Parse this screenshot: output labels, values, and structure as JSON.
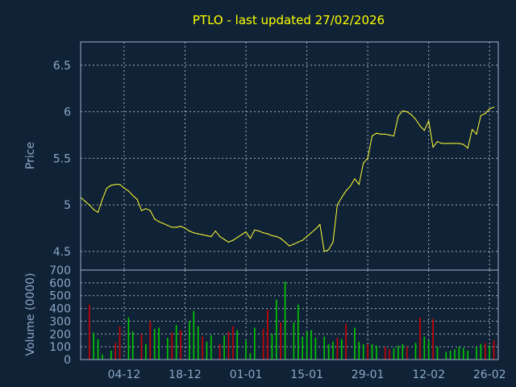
{
  "chart_data": {
    "type": "line",
    "title": "PTLO - last updated 27/02/2026",
    "price_panel": {
      "ylabel": "Price",
      "ylim": [
        4.3,
        6.75
      ],
      "yticks": [
        4.5,
        5,
        5.5,
        6,
        6.5
      ],
      "ytick_labels": [
        "4.5",
        "5",
        "5.5",
        "6",
        "6.5"
      ],
      "grid": true
    },
    "volume_panel": {
      "ylabel": "Volume (0000)",
      "ylim": [
        0,
        700
      ],
      "yticks": [
        0,
        100,
        200,
        300,
        400,
        500,
        600,
        700
      ],
      "ytick_labels": [
        "0",
        "100",
        "200",
        "300",
        "400",
        "500",
        "600",
        "700"
      ],
      "grid": true
    },
    "x_range": [
      "2025-11-24",
      "2026-02-28"
    ],
    "xticks": [
      "2025-12-04",
      "2025-12-18",
      "2026-01-01",
      "2026-01-15",
      "2026-01-29",
      "2026-02-12",
      "2026-02-26"
    ],
    "xtick_labels": [
      "04-12",
      "18-12",
      "01-01",
      "15-01",
      "29-01",
      "12-02",
      "26-02"
    ],
    "colors": {
      "price": "#ffff33",
      "volume_up": "#00cc00",
      "volume_down": "#cc0000"
    },
    "series": [
      {
        "kind": "price",
        "x": [
          "2025-11-24",
          "2025-11-25",
          "2025-11-26",
          "2025-11-27",
          "2025-11-28",
          "2025-11-29",
          "2025-11-30",
          "2025-12-01",
          "2025-12-02",
          "2025-12-03",
          "2025-12-04",
          "2025-12-05",
          "2025-12-06",
          "2025-12-07",
          "2025-12-08",
          "2025-12-09",
          "2025-12-10",
          "2025-12-11",
          "2025-12-12",
          "2025-12-13",
          "2025-12-14",
          "2025-12-15",
          "2025-12-16",
          "2025-12-17",
          "2025-12-18",
          "2025-12-19",
          "2025-12-20",
          "2025-12-21",
          "2025-12-22",
          "2025-12-23",
          "2025-12-24",
          "2025-12-25",
          "2025-12-26",
          "2025-12-27",
          "2025-12-28",
          "2025-12-29",
          "2025-12-30",
          "2025-12-31",
          "2026-01-01",
          "2026-01-02",
          "2026-01-03",
          "2026-01-04",
          "2026-01-05",
          "2026-01-06",
          "2026-01-07",
          "2026-01-08",
          "2026-01-09",
          "2026-01-10",
          "2026-01-11",
          "2026-01-12",
          "2026-01-13",
          "2026-01-14",
          "2026-01-15",
          "2026-01-16",
          "2026-01-17",
          "2026-01-18",
          "2026-01-19",
          "2026-01-20",
          "2026-01-21",
          "2026-01-22",
          "2026-01-23",
          "2026-01-24",
          "2026-01-25",
          "2026-01-26",
          "2026-01-27",
          "2026-01-28",
          "2026-01-29",
          "2026-01-30",
          "2026-01-31",
          "2026-02-01",
          "2026-02-02",
          "2026-02-03",
          "2026-02-04",
          "2026-02-05",
          "2026-02-06",
          "2026-02-07",
          "2026-02-08",
          "2026-02-09",
          "2026-02-10",
          "2026-02-11",
          "2026-02-12",
          "2026-02-13",
          "2026-02-14",
          "2026-02-15",
          "2026-02-16",
          "2026-02-17",
          "2026-02-18",
          "2026-02-19",
          "2026-02-20",
          "2026-02-21",
          "2026-02-22",
          "2026-02-23",
          "2026-02-24",
          "2026-02-25",
          "2026-02-26",
          "2026-02-27"
        ],
        "values": [
          5.08,
          5.04,
          5.0,
          4.95,
          4.92,
          5.06,
          5.18,
          5.21,
          5.22,
          5.22,
          5.18,
          5.15,
          5.1,
          5.06,
          4.94,
          4.96,
          4.94,
          4.85,
          4.82,
          4.8,
          4.78,
          4.76,
          4.76,
          4.77,
          4.75,
          4.72,
          4.7,
          4.69,
          4.68,
          4.67,
          4.66,
          4.72,
          4.66,
          4.63,
          4.6,
          4.62,
          4.65,
          4.68,
          4.71,
          4.64,
          4.73,
          4.72,
          4.7,
          4.69,
          4.67,
          4.66,
          4.64,
          4.6,
          4.56,
          4.58,
          4.6,
          4.62,
          4.66,
          4.7,
          4.74,
          4.79,
          4.5,
          4.52,
          4.6,
          5.0,
          5.08,
          5.15,
          5.2,
          5.28,
          5.22,
          5.45,
          5.5,
          5.74,
          5.77,
          5.76,
          5.76,
          5.75,
          5.74,
          5.95,
          6.01,
          6.0,
          5.97,
          5.92,
          5.85,
          5.8,
          5.9,
          5.62,
          5.68,
          5.66,
          5.66,
          5.66,
          5.66,
          5.66,
          5.65,
          5.61,
          5.81,
          5.76,
          5.96,
          5.98,
          6.03,
          6.05
        ]
      },
      {
        "kind": "volume",
        "x": [
          "2025-11-26",
          "2025-11-27",
          "2025-11-28",
          "2025-11-29",
          "2025-12-01",
          "2025-12-02",
          "2025-12-03",
          "2025-12-05",
          "2025-12-06",
          "2025-12-08",
          "2025-12-09",
          "2025-12-10",
          "2025-12-11",
          "2025-12-12",
          "2025-12-14",
          "2025-12-15",
          "2025-12-16",
          "2025-12-17",
          "2025-12-19",
          "2025-12-20",
          "2025-12-21",
          "2025-12-22",
          "2025-12-23",
          "2025-12-24",
          "2025-12-26",
          "2025-12-27",
          "2025-12-28",
          "2025-12-29",
          "2025-12-30",
          "2026-01-01",
          "2026-01-02",
          "2026-01-03",
          "2026-01-05",
          "2026-01-06",
          "2026-01-07",
          "2026-01-08",
          "2026-01-09",
          "2026-01-10",
          "2026-01-12",
          "2026-01-13",
          "2026-01-14",
          "2026-01-15",
          "2026-01-16",
          "2026-01-17",
          "2026-01-19",
          "2026-01-20",
          "2026-01-21",
          "2026-01-22",
          "2026-01-23",
          "2026-01-24",
          "2026-01-26",
          "2026-01-27",
          "2026-01-28",
          "2026-01-29",
          "2026-01-30",
          "2026-01-31",
          "2026-02-02",
          "2026-02-03",
          "2026-02-04",
          "2026-02-05",
          "2026-02-06",
          "2026-02-07",
          "2026-02-09",
          "2026-02-10",
          "2026-02-11",
          "2026-02-12",
          "2026-02-13",
          "2026-02-14",
          "2026-02-16",
          "2026-02-17",
          "2026-02-18",
          "2026-02-19",
          "2026-02-20",
          "2026-02-21",
          "2026-02-23",
          "2026-02-24",
          "2026-02-25",
          "2026-02-26",
          "2026-02-27"
        ],
        "values": [
          430,
          210,
          160,
          40,
          70,
          130,
          260,
          330,
          220,
          200,
          120,
          300,
          240,
          250,
          170,
          210,
          270,
          230,
          300,
          380,
          260,
          180,
          140,
          190,
          120,
          190,
          220,
          260,
          230,
          150,
          50,
          250,
          240,
          390,
          200,
          470,
          290,
          610,
          290,
          430,
          180,
          220,
          230,
          170,
          180,
          120,
          140,
          170,
          160,
          280,
          250,
          140,
          120,
          120,
          120,
          110,
          100,
          80,
          90,
          110,
          120,
          100,
          130,
          330,
          180,
          150,
          320,
          100,
          60,
          70,
          80,
          100,
          90,
          70,
          100,
          120,
          130,
          110,
          150
        ],
        "direction": [
          "down",
          "up",
          "up",
          "up",
          "up",
          "down",
          "down",
          "up",
          "up",
          "down",
          "up",
          "down",
          "up",
          "up",
          "up",
          "down",
          "up",
          "down",
          "up",
          "up",
          "up",
          "down",
          "up",
          "up",
          "down",
          "up",
          "down",
          "down",
          "up",
          "up",
          "up",
          "up",
          "down",
          "down",
          "up",
          "up",
          "down",
          "up",
          "up",
          "up",
          "up",
          "up",
          "up",
          "up",
          "up",
          "up",
          "up",
          "down",
          "up",
          "down",
          "up",
          "up",
          "up",
          "down",
          "up",
          "up",
          "down",
          "down",
          "up",
          "up",
          "up",
          "down",
          "up",
          "down",
          "up",
          "up",
          "down",
          "up",
          "up",
          "up",
          "up",
          "up",
          "up",
          "up",
          "up",
          "up",
          "down",
          "up",
          "down"
        ]
      }
    ]
  }
}
